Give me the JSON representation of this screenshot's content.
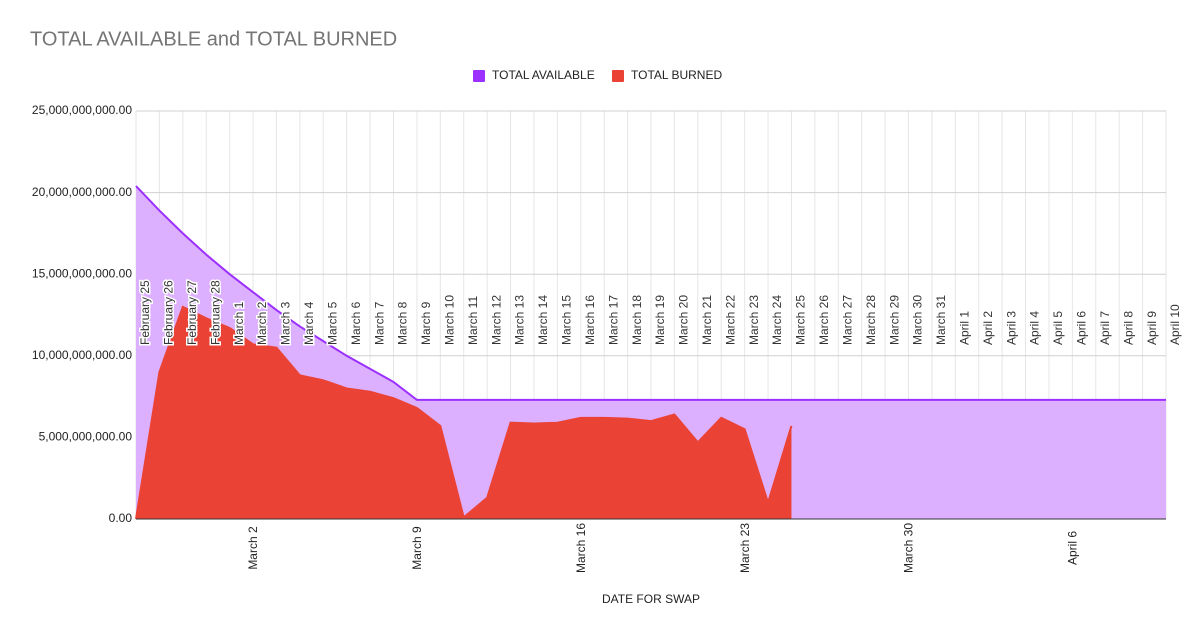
{
  "chart_data": {
    "type": "area",
    "title": "TOTAL AVAILABLE and TOTAL BURNED",
    "x_label": "DATE FOR SWAP",
    "legend": "top",
    "grid": true,
    "categories": [
      "February 25",
      "February 26",
      "February 27",
      "February 28",
      "March 1",
      "March 2",
      "March 3",
      "March 4",
      "March 5",
      "March 6",
      "March 7",
      "March 8",
      "March 9",
      "March 10",
      "March 11",
      "March 12",
      "March 13",
      "March 14",
      "March 15",
      "March 16",
      "March 17",
      "March 18",
      "March 19",
      "March 20",
      "March 21",
      "March 22",
      "March 23",
      "March 24",
      "March 25",
      "March 26",
      "March 27",
      "March 28",
      "March 29",
      "March 30",
      "March 31",
      "April 1",
      "April 2",
      "April 3",
      "April 4",
      "April 5",
      "April 6",
      "April 7",
      "April 8",
      "April 9",
      "April 10"
    ],
    "series": [
      {
        "name": "TOTAL AVAILABLE",
        "color": "#9b30ff",
        "fill": "#dcb0ff",
        "values": [
          20400000000,
          18900000000,
          17500000000,
          16200000000,
          15000000000,
          13900000000,
          12800000000,
          11800000000,
          10900000000,
          10000000000,
          9200000000,
          8400000000,
          7300000000,
          7300000000,
          7300000000,
          7300000000,
          7300000000,
          7300000000,
          7300000000,
          7300000000,
          7300000000,
          7300000000,
          7300000000,
          7300000000,
          7300000000,
          7300000000,
          7300000000,
          7300000000,
          7300000000,
          7300000000,
          7300000000,
          7300000000,
          7300000000,
          7300000000,
          7300000000,
          7300000000,
          7300000000,
          7300000000,
          7300000000,
          7300000000,
          7300000000,
          7300000000,
          7300000000,
          7300000000,
          7300000000
        ]
      },
      {
        "name": "TOTAL BURNED",
        "color": "#ea4335",
        "fill": "#ea4335",
        "values": [
          0,
          9000000000,
          13000000000,
          12300000000,
          11700000000,
          10700000000,
          10500000000,
          8800000000,
          8500000000,
          8000000000,
          7800000000,
          7400000000,
          6800000000,
          5700000000,
          100000000,
          1300000000,
          5900000000,
          5850000000,
          5900000000,
          6200000000,
          6200000000,
          6150000000,
          6000000000,
          6400000000,
          4700000000,
          6200000000,
          5500000000,
          1000000000,
          5700000000,
          null,
          null,
          null,
          null,
          null,
          null,
          null,
          null,
          null,
          null,
          null,
          null,
          null,
          null,
          null,
          null
        ]
      }
    ],
    "ylim": [
      0,
      25000000000
    ],
    "yticks": [
      {
        "value": 0,
        "label": "0.00"
      },
      {
        "value": 5000000000,
        "label": "5,000,000,000.00"
      },
      {
        "value": 10000000000,
        "label": "10,000,000,000.00"
      },
      {
        "value": 15000000000,
        "label": "15,000,000,000.00"
      },
      {
        "value": 20000000000,
        "label": "20,000,000,000.00"
      },
      {
        "value": 25000000000,
        "label": "25,000,000,000.00"
      }
    ]
  }
}
